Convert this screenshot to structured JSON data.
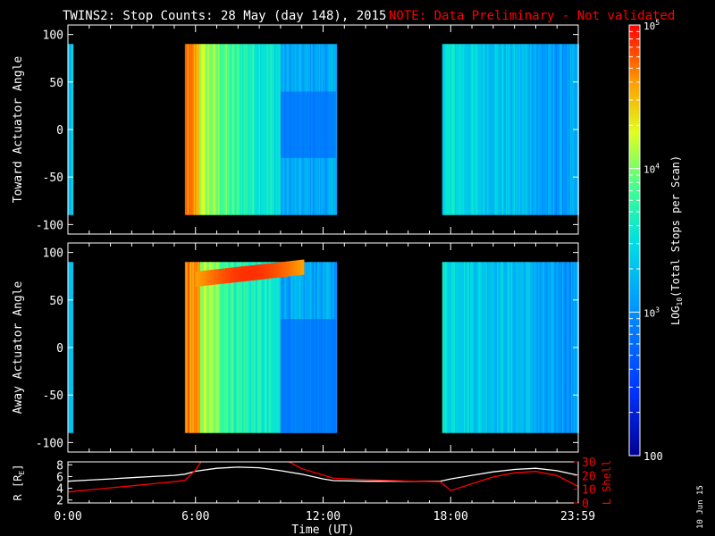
{
  "title": "TWINS2: Stop Counts: 28 May (day 148), 2015",
  "note": "NOTE: Data Preliminary - Not validated",
  "side_date": "10 Jun 15",
  "colors": {
    "background": "#000000",
    "axes": "#ffffff",
    "note_text": "#ff0000",
    "r_line": "#ffffff",
    "lshell_line": "#ff0000"
  },
  "chart_data": [
    {
      "type": "heatmap",
      "ylabel": "Toward Actuator Angle",
      "y_ticks": [
        "100",
        "50",
        "0",
        "-50",
        "-100"
      ],
      "x_ticks": [],
      "ylim": [
        -110,
        110
      ],
      "xlim_hours": [
        0,
        24
      ],
      "data_blocks_hours": [
        [
          0.0,
          0.2
        ],
        [
          5.5,
          12.6
        ],
        [
          17.6,
          24.0
        ]
      ],
      "colorscale": "log",
      "notes": "Red/orange stripes near 06:00, blue/cyan elsewhere"
    },
    {
      "type": "heatmap",
      "ylabel": "Away Actuator Angle",
      "y_ticks": [
        "100",
        "50",
        "0",
        "-50",
        "-100"
      ],
      "x_ticks": [],
      "ylim": [
        -110,
        110
      ],
      "xlim_hours": [
        0,
        24
      ],
      "data_blocks_hours": [
        [
          0.0,
          0.2
        ],
        [
          5.5,
          12.6
        ],
        [
          17.6,
          24.0
        ]
      ],
      "colorscale": "log",
      "notes": "Orange/red band near +75 deg between 06:00 and 11:00"
    },
    {
      "type": "line",
      "xlabel": "Time (UT)",
      "x_tick_labels": [
        "0:00",
        "6:00",
        "12:00",
        "18:00",
        "23:59"
      ],
      "x_tick_hours": [
        0,
        6,
        12,
        18,
        23.98
      ],
      "left_axis": {
        "label": "R [R",
        "label_sub": "E",
        "label_end": "]",
        "ticks": [
          "8",
          "6",
          "4",
          "2"
        ],
        "ylim": [
          1.5,
          8.5
        ]
      },
      "right_axis": {
        "label": "L Shell",
        "ticks": [
          "30",
          "20",
          "10",
          "0"
        ],
        "ylim": [
          0,
          30
        ]
      },
      "series": [
        {
          "axis": "left",
          "x": [
            0,
            1,
            2,
            3,
            4,
            5,
            5.5,
            6,
            7,
            8,
            9,
            10,
            11,
            12,
            12.5,
            14,
            16,
            17.5,
            18,
            19,
            20,
            21,
            22,
            23,
            24
          ],
          "y": [
            5.2,
            5.4,
            5.6,
            5.8,
            6.0,
            6.2,
            6.4,
            6.9,
            7.4,
            7.6,
            7.5,
            7.0,
            6.4,
            5.6,
            5.3,
            5.2,
            5.2,
            5.2,
            5.6,
            6.2,
            6.8,
            7.2,
            7.4,
            7.0,
            6.2
          ]
        },
        {
          "axis": "right",
          "x": [
            0,
            1,
            2,
            3,
            4,
            5,
            5.5,
            6,
            6.3,
            10.1,
            10.4,
            11,
            12.5,
            14,
            16,
            17.5,
            18,
            19,
            20,
            21,
            22,
            23,
            24
          ],
          "y": [
            8,
            9.5,
            11,
            12.5,
            14,
            15.5,
            16.5,
            24,
            31,
            31,
            30,
            25,
            18,
            17,
            16,
            15.5,
            9,
            14,
            19,
            22,
            23,
            20,
            12
          ]
        }
      ]
    }
  ],
  "colorbar": {
    "label": "LOG",
    "label_sub": "10",
    "label_end": "(Total Stops per Scan)",
    "ticks": [
      "10",
      "10",
      "100"
    ],
    "tick_exps": [
      "5",
      "4"
    ],
    "tick_3": "10",
    "tick_3_exp": "3",
    "range": [
      100,
      100000
    ]
  }
}
